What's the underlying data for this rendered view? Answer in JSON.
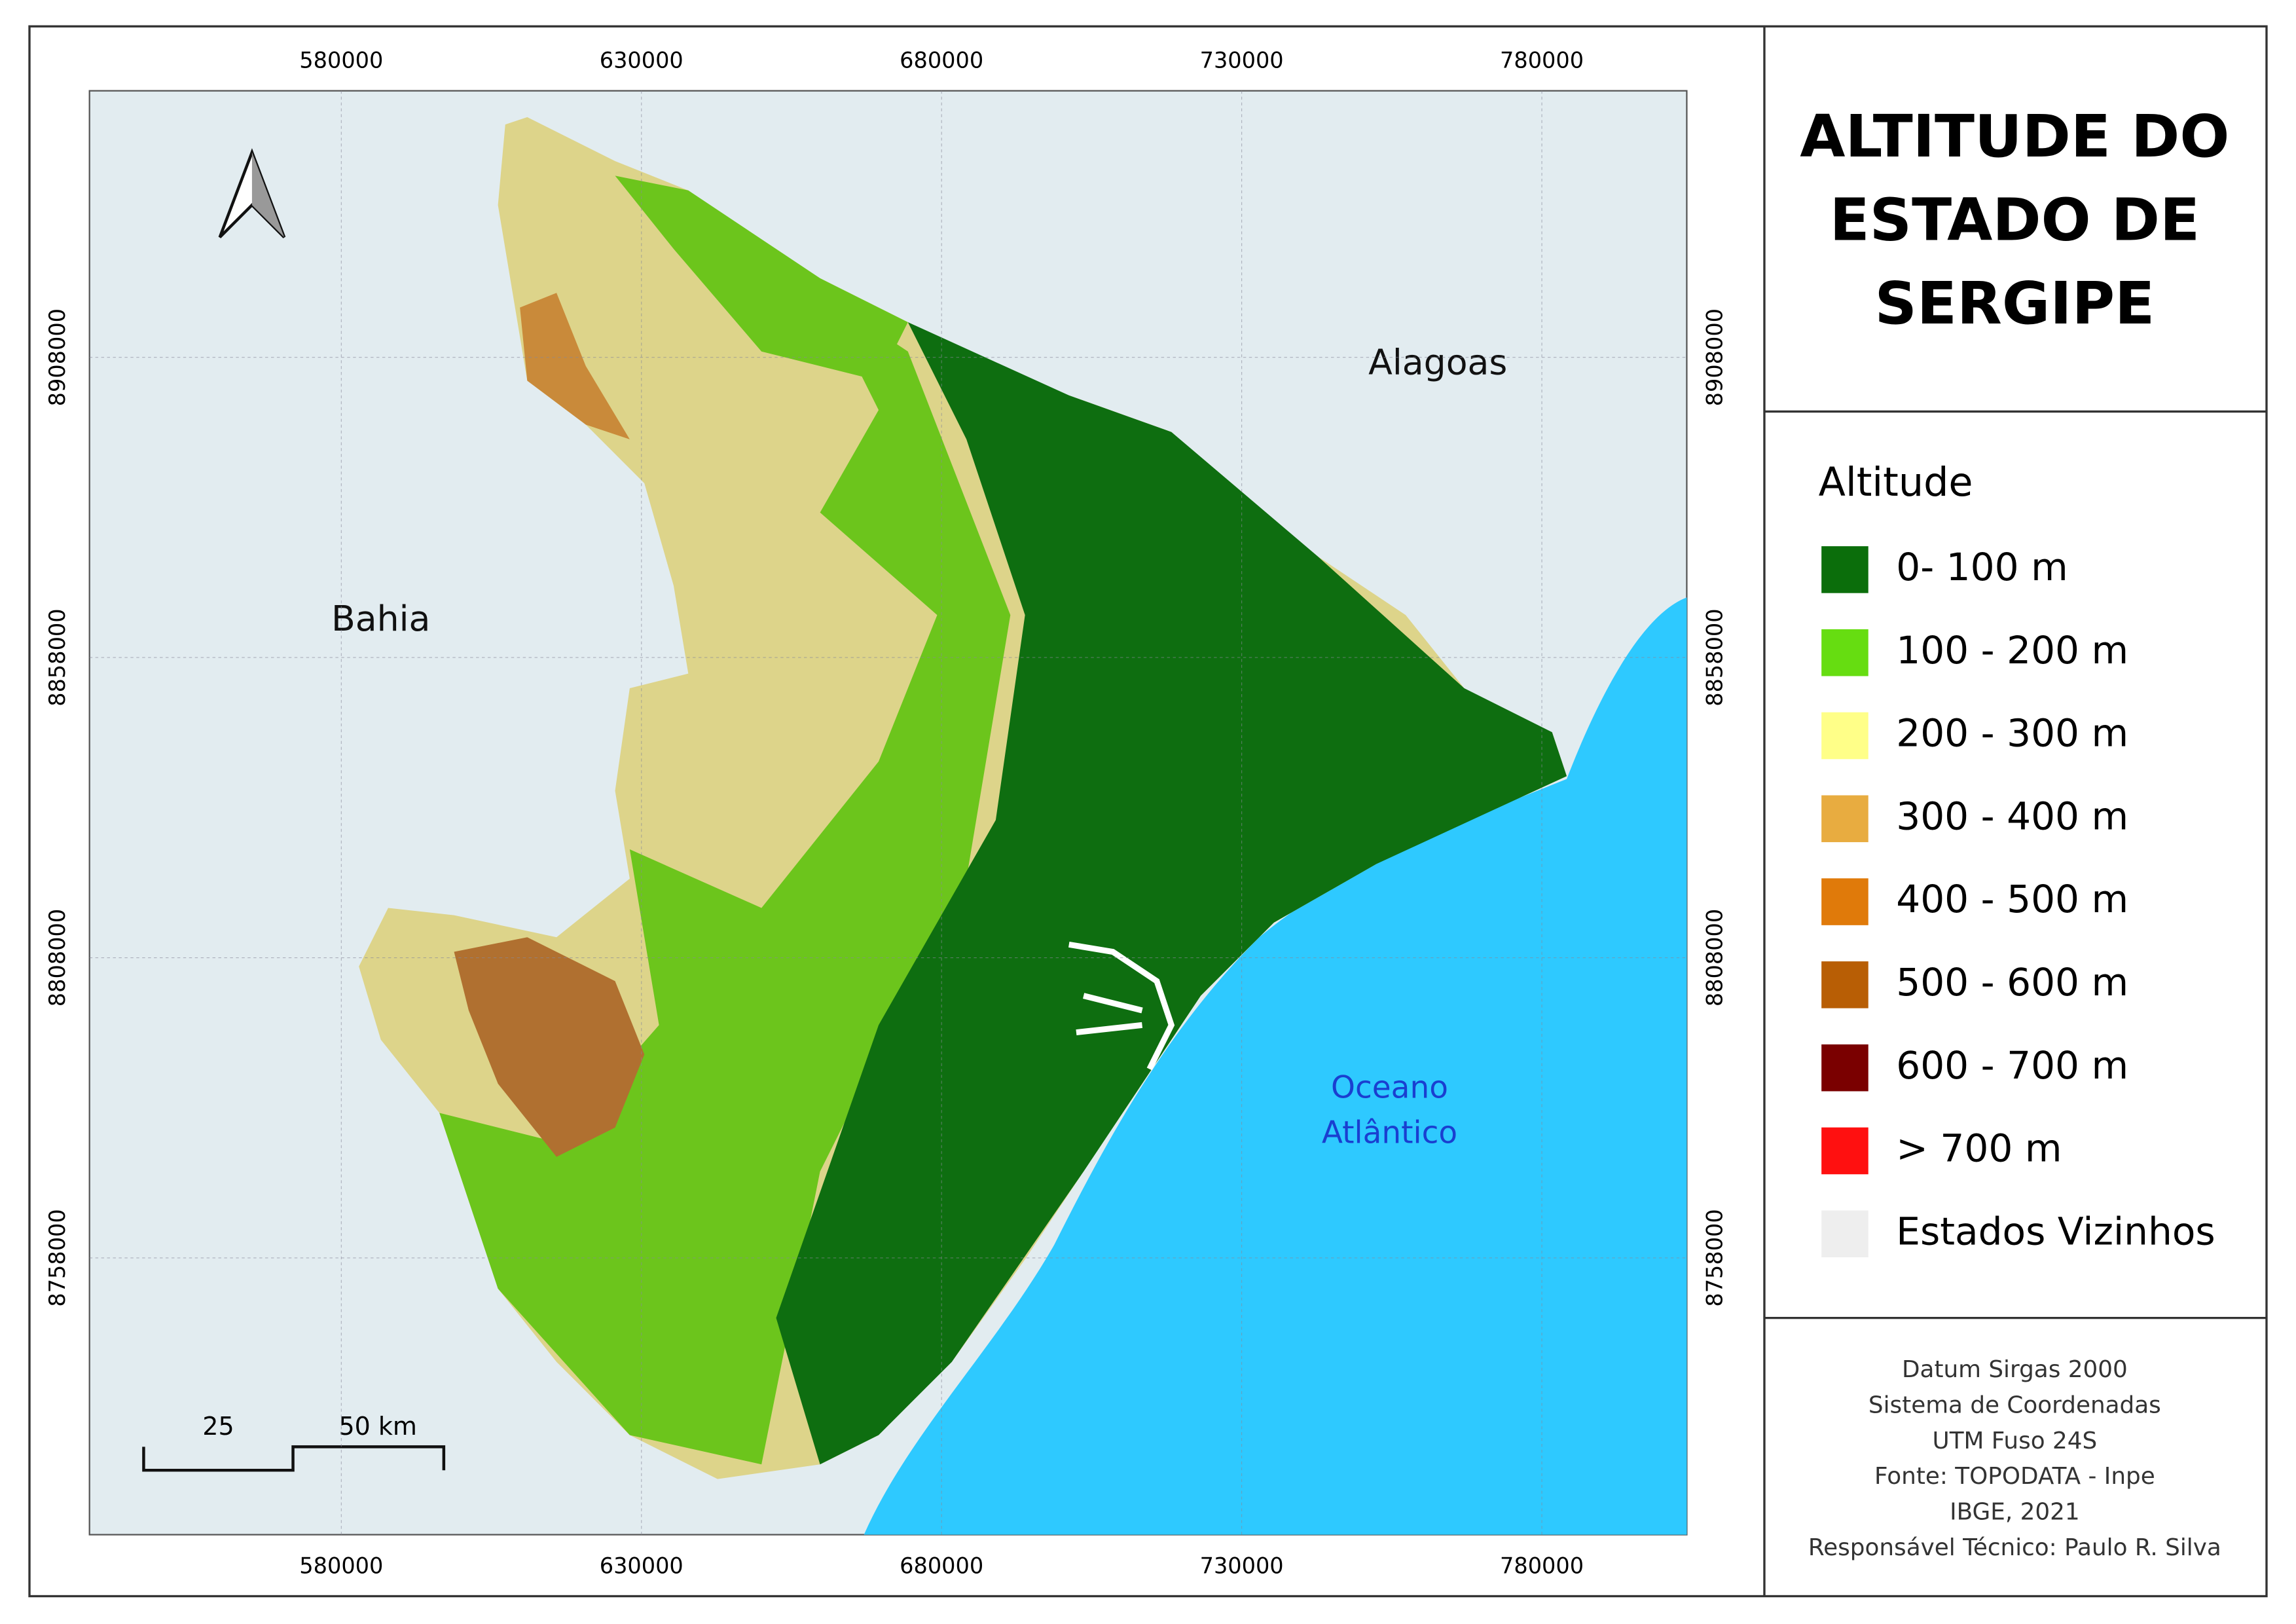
{
  "title_lines": [
    "ALTITUDE DO",
    "ESTADO DE",
    "SERGIPE"
  ],
  "map": {
    "xlim": [
      538049,
      804146
    ],
    "ylim": [
      8711902,
      8952390
    ],
    "xticks": [
      580000,
      630000,
      680000,
      730000,
      780000
    ],
    "yticks": [
      8758000,
      8808000,
      8858000,
      8908000
    ],
    "places": [
      "Bahia",
      "Alagoas"
    ],
    "ocean_lines": [
      "Oceano",
      "Atlântico"
    ],
    "scale_labels": [
      "25",
      "50 km"
    ]
  },
  "legend": {
    "title": "Altitude",
    "items": [
      {
        "label": "0- 100 m",
        "color": "#0b6e0b"
      },
      {
        "label": "100 - 200 m",
        "color": "#66dd11"
      },
      {
        "label": "200 - 300 m",
        "color": "#ffff88"
      },
      {
        "label": "300 - 400 m",
        "color": "#e8ac40"
      },
      {
        "label": "400 - 500 m",
        "color": "#e07a0a"
      },
      {
        "label": "500 - 600 m",
        "color": "#b85e05"
      },
      {
        "label": "600 - 700 m",
        "color": "#7a0000"
      },
      {
        "label": "> 700 m",
        "color": "#ff1010"
      },
      {
        "label": "Estados Vizinhos",
        "color": "#eeeeee"
      }
    ]
  },
  "footer": [
    "Datum Sirgas 2000",
    "Sistema de Coordenadas",
    "UTM Fuso 24S",
    "Fonte: TOPODATA - Inpe",
    "IBGE, 2021",
    "Responsável Técnico: Paulo R. Silva"
  ]
}
